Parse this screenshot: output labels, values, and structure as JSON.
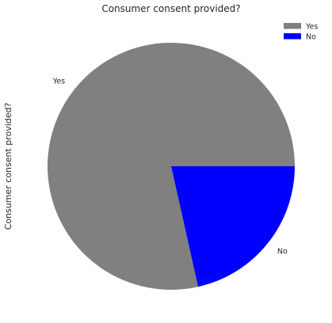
{
  "chart_data": {
    "type": "pie",
    "title": "Consumer consent provided?",
    "ylabel": "Consumer consent provided?",
    "slices": [
      {
        "label": "Yes",
        "value": 78.5,
        "color": "#808080"
      },
      {
        "label": "No",
        "value": 21.5,
        "color": "#0000ff"
      }
    ],
    "legend": {
      "placement": "top-right",
      "entries": [
        "Yes",
        "No"
      ]
    }
  }
}
